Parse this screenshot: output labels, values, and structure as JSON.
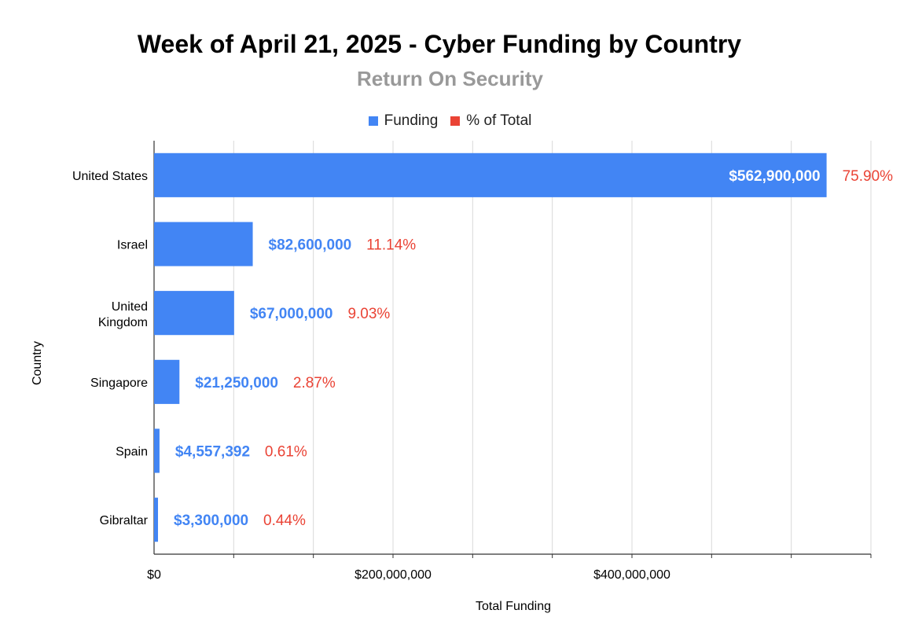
{
  "chart_data": {
    "type": "bar",
    "orientation": "horizontal",
    "title": "Week of April 21, 2025 - Cyber Funding by Country",
    "subtitle": "Return On Security",
    "xlabel": "Total Funding",
    "ylabel": "Country",
    "categories": [
      "United States",
      "Israel",
      "United Kingdom",
      "Singapore",
      "Spain",
      "Gibraltar"
    ],
    "series": [
      {
        "name": "Funding",
        "values": [
          562900000,
          82600000,
          67000000,
          21250000,
          4557392,
          3300000
        ],
        "labels": [
          "$562,900,000",
          "$82,600,000",
          "$67,000,000",
          "$21,250,000",
          "$4,557,392",
          "$3,300,000"
        ],
        "color": "#4285f4"
      },
      {
        "name": "% of Total",
        "values": [
          75.9,
          11.14,
          9.03,
          2.87,
          0.61,
          0.44
        ],
        "labels": [
          "75.90%",
          "11.14%",
          "9.03%",
          "2.87%",
          "0.61%",
          "0.44%"
        ],
        "color": "#ea4335"
      }
    ],
    "xlim": [
      0,
      600000000
    ],
    "xticks": [
      0,
      200000000,
      400000000
    ],
    "xtick_labels": [
      "$0",
      "$200,000,000",
      "$400,000,000"
    ],
    "grid": true,
    "legend_position": "top-center"
  }
}
